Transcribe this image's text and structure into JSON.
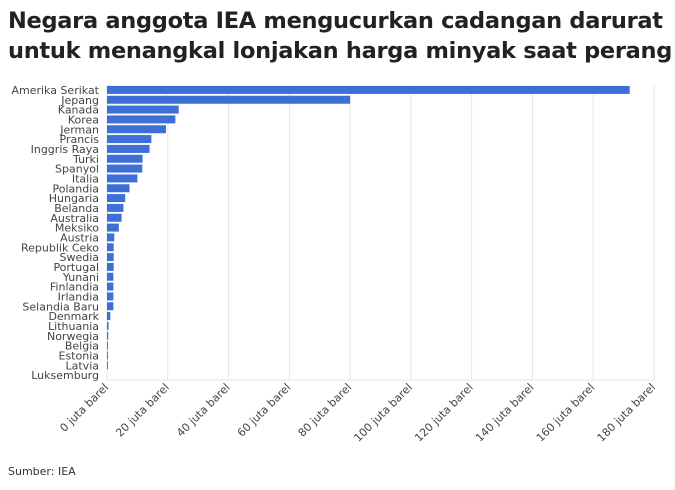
{
  "title": "Negara anggota IEA mengucurkan cadangan darurat untuk menangkal lonjakan harga minyak saat perang",
  "source": "Sumber: IEA",
  "colors": {
    "bar": "#3d6fd6",
    "grid": "#e6e6e6"
  },
  "chart_data": {
    "type": "bar",
    "orientation": "horizontal",
    "title": "Negara anggota IEA mengucurkan cadangan darurat untuk menangkal lonjakan harga minyak saat perang",
    "xlabel": "",
    "ylabel": "",
    "xlim": [
      0,
      180
    ],
    "grid": true,
    "x_ticks": [
      "0 juta barel",
      "20 juta barel",
      "40 juta barel",
      "60 juta barel",
      "80 juta barel",
      "100 juta barel",
      "120 juta barel",
      "140 juta barel",
      "160 juta barel",
      "180 juta barel"
    ],
    "categories": [
      "Amerika Serikat",
      "Jepang",
      "Kanada",
      "Korea",
      "Jerman",
      "Prancis",
      "Inggris Raya",
      "Turki",
      "Spanyol",
      "Italia",
      "Polandia",
      "Hungaria",
      "Belanda",
      "Australia",
      "Meksiko",
      "Austria",
      "Republik Ceko",
      "Swedia",
      "Portugal",
      "Yunani",
      "Finlandia",
      "Irlandia",
      "Selandia Baru",
      "Denmark",
      "Lithuania",
      "Norwegia",
      "Belgia",
      "Estonia",
      "Latvia",
      "Luksemburg"
    ],
    "values": [
      172,
      80,
      23.6,
      22.5,
      19.4,
      14.6,
      14.0,
      11.7,
      11.6,
      10.0,
      7.4,
      6.0,
      5.4,
      4.8,
      3.9,
      2.4,
      2.2,
      2.2,
      2.2,
      2.1,
      2.1,
      2.1,
      2.1,
      1.1,
      0.5,
      0.4,
      0.3,
      0.3,
      0.3,
      0
    ]
  }
}
